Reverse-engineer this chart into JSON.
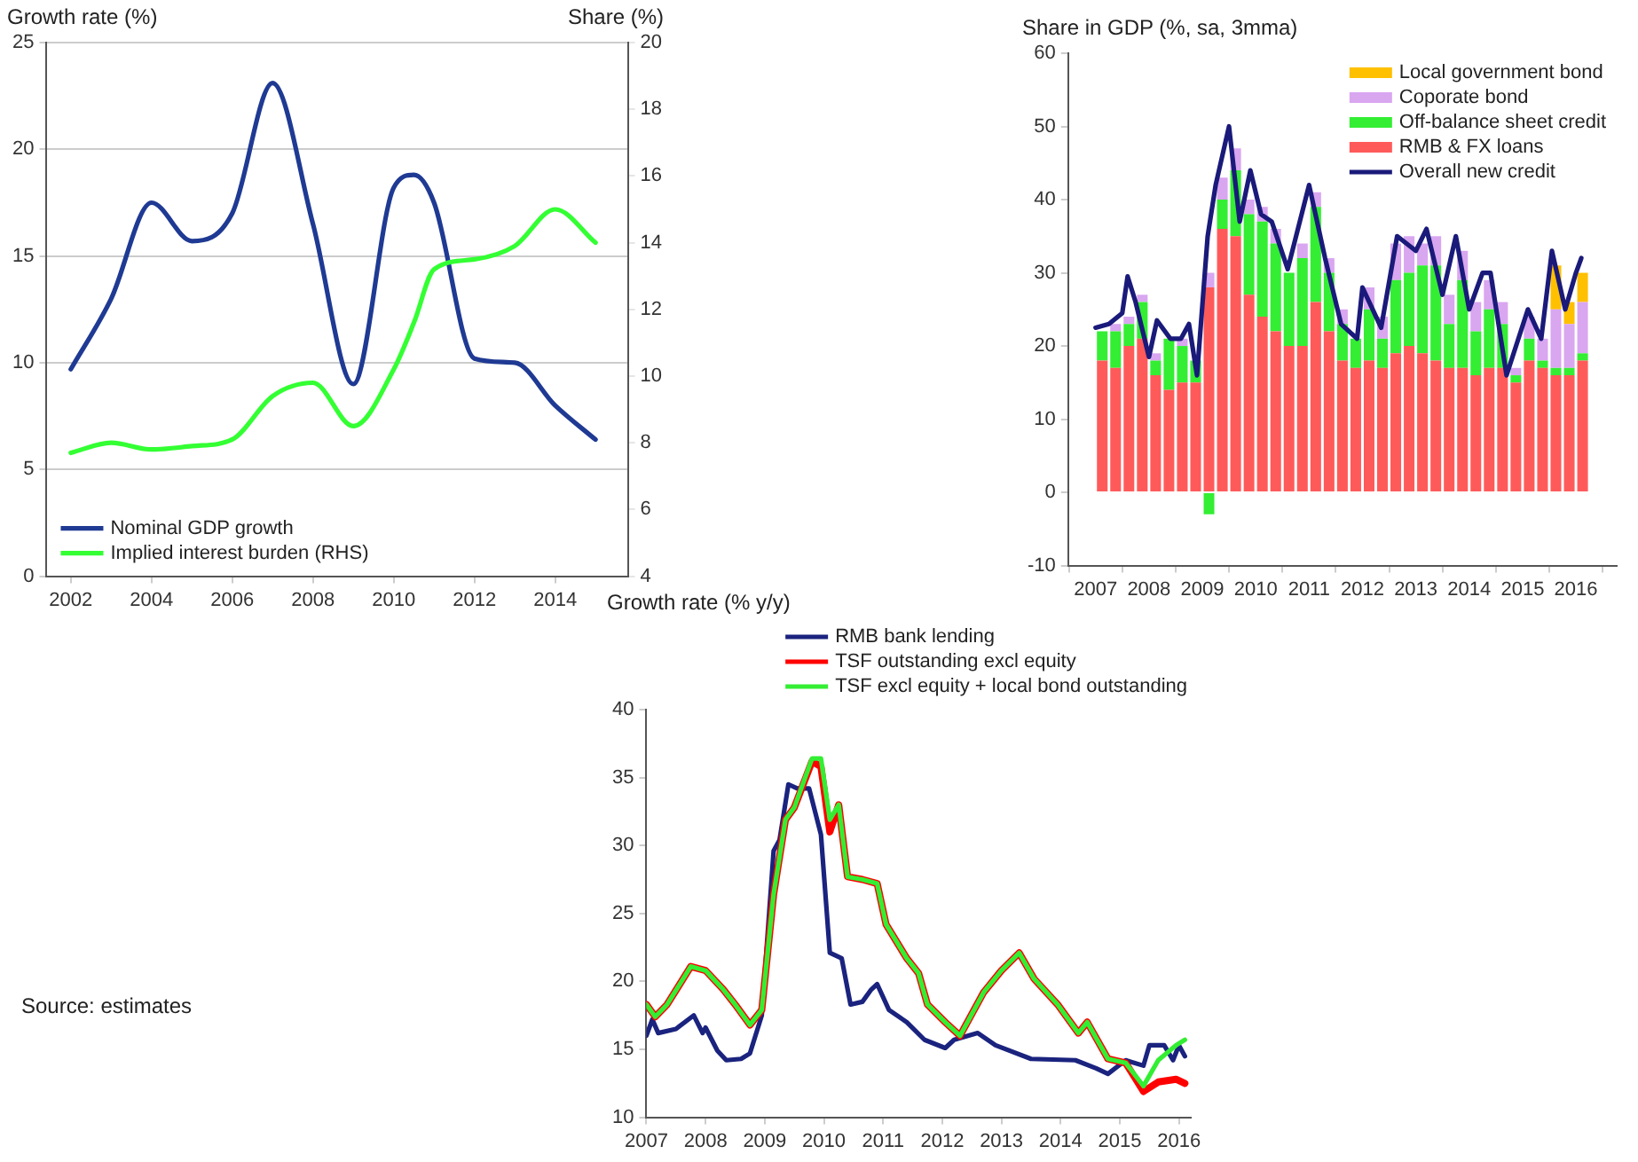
{
  "chart_data": [
    {
      "type": "line",
      "ylabel": "Growth rate (%)",
      "y2label": "Share (%)",
      "x": [
        2002,
        2003,
        2004,
        2005,
        2006,
        2007,
        2008,
        2009,
        2010,
        2010.5,
        2011,
        2012,
        2013,
        2014,
        2015
      ],
      "series": [
        {
          "name": "Nominal GDP growth",
          "color": "#1f3a93",
          "values": [
            9.7,
            13,
            17.5,
            15.7,
            17,
            23.1,
            16.5,
            9,
            18.2,
            18.8,
            17.5,
            10.2,
            10,
            8,
            6.4
          ]
        },
        {
          "name": "Implied interest burden (RHS)",
          "color": "#33ff33",
          "axis": "y2",
          "values": [
            7.7,
            8.0,
            7.8,
            7.9,
            8.1,
            9.4,
            9.8,
            8.5,
            10.2,
            11.6,
            13.2,
            13.5,
            13.9,
            15.0,
            14.0
          ]
        }
      ],
      "xlim": [
        2001.4,
        2015.8
      ],
      "xticks": [
        2002,
        2004,
        2006,
        2008,
        2010,
        2012,
        2014
      ],
      "ylim": [
        0,
        25
      ],
      "yticks": [
        0,
        5,
        10,
        15,
        20,
        25
      ],
      "y2lim": [
        4,
        20
      ],
      "y2ticks": [
        4,
        6,
        8,
        10,
        12,
        14,
        16,
        18,
        20
      ],
      "grid": "y",
      "legend": "bottom left",
      "annotations": [
        "Source: estimates"
      ]
    },
    {
      "type": "bar",
      "stacked": true,
      "ylabel": "Share in GDP (%, sa, 3mma)",
      "x": [
        2007.125,
        2007.375,
        2007.625,
        2007.875,
        2008.125,
        2008.375,
        2008.625,
        2008.875,
        2009.125,
        2009.375,
        2009.625,
        2009.875,
        2010.125,
        2010.375,
        2010.625,
        2010.875,
        2011.125,
        2011.375,
        2011.625,
        2011.875,
        2012.125,
        2012.375,
        2012.625,
        2012.875,
        2013.125,
        2013.375,
        2013.625,
        2013.875,
        2014.125,
        2014.375,
        2014.625,
        2014.875,
        2015.125,
        2015.375,
        2015.625,
        2015.875,
        2016.125
      ],
      "series": [
        {
          "name": "RMB & FX loans",
          "color": "#ff5a5a",
          "values": [
            18,
            17,
            20,
            21,
            16,
            14,
            15,
            15,
            28,
            36,
            35,
            27,
            24,
            22,
            20,
            20,
            26,
            22,
            18,
            17,
            18,
            17,
            19,
            20,
            19,
            18,
            17,
            17,
            16,
            17,
            17,
            15,
            18,
            17,
            16,
            16,
            18
          ]
        },
        {
          "name": "Off-balance sheet credit",
          "color": "#33ee33",
          "values": [
            4,
            5,
            3,
            5,
            2,
            7,
            5,
            3,
            -3,
            4,
            9,
            11,
            13,
            12,
            10,
            12,
            13,
            8,
            5,
            4,
            7,
            4,
            10,
            10,
            12,
            13,
            6,
            12,
            6,
            8,
            6,
            1,
            3,
            1,
            1,
            1,
            1
          ]
        },
        {
          "name": "Coporate bond",
          "color": "#d9a6f0",
          "values": [
            null,
            1,
            1,
            1,
            1,
            null,
            1,
            null,
            2,
            3,
            3,
            2,
            2,
            2,
            null,
            2,
            2,
            2,
            2,
            null,
            3,
            3,
            5,
            5,
            3,
            4,
            4,
            4,
            4,
            4,
            3,
            1,
            3,
            3,
            8,
            6,
            7
          ]
        },
        {
          "name": "Local government bond",
          "color": "#ffc000",
          "values": [
            0,
            0,
            0,
            0,
            0,
            0,
            0,
            0,
            0,
            0,
            0,
            0,
            0,
            0,
            0,
            0,
            0,
            0,
            0,
            0,
            0,
            0,
            0,
            0,
            0,
            0,
            0,
            0,
            0,
            0,
            0,
            0,
            0,
            0,
            6,
            3,
            4
          ]
        },
        {
          "name": "Overall new credit",
          "type": "line",
          "color": "#1a1a7a",
          "x": [
            2007,
            2007.25,
            2007.5,
            2007.6,
            2007.75,
            2008,
            2008.15,
            2008.4,
            2008.6,
            2008.75,
            2008.9,
            2009.1,
            2009.25,
            2009.5,
            2009.7,
            2009.9,
            2010.1,
            2010.3,
            2010.6,
            2011,
            2011.3,
            2011.6,
            2011.9,
            2012,
            2012.35,
            2012.65,
            2013,
            2013.2,
            2013.5,
            2013.75,
            2014,
            2014.25,
            2014.4,
            2014.7,
            2015.1,
            2015.35,
            2015.55,
            2015.8,
            2016,
            2016.1
          ],
          "values": [
            22.5,
            23,
            24.5,
            29.5,
            26,
            18.5,
            23.5,
            21,
            21,
            23,
            16,
            35,
            42,
            50,
            37,
            44,
            38,
            37,
            30.5,
            42,
            32,
            23,
            21,
            28,
            22.5,
            35,
            33,
            36,
            27,
            35,
            25,
            30,
            30,
            16,
            25,
            21,
            33,
            25,
            30,
            32
          ]
        }
      ],
      "xlim": [
        2007,
        2016.25
      ],
      "xticks": [
        2007,
        2008,
        2009,
        2010,
        2011,
        2012,
        2013,
        2014,
        2015,
        2016
      ],
      "ylim": [
        -10,
        60
      ],
      "yticks": [
        -10,
        0,
        10,
        20,
        30,
        40,
        50,
        60
      ],
      "legend": "top right"
    },
    {
      "type": "line",
      "ylabel": "Growth rate (% y/y)",
      "series": [
        {
          "name": "RMB bank lending",
          "color": "#1a237e",
          "x": [
            2007,
            2007.1,
            2007.2,
            2007.5,
            2007.8,
            2007.95,
            2008,
            2008.2,
            2008.35,
            2008.6,
            2008.75,
            2008.95,
            2009.15,
            2009.25,
            2009.4,
            2009.55,
            2009.75,
            2009.95,
            2010.1,
            2010.3,
            2010.45,
            2010.65,
            2010.8,
            2010.9,
            2011.1,
            2011.4,
            2011.7,
            2012.05,
            2012.2,
            2012.6,
            2012.9,
            2013.5,
            2014.25,
            2014.6,
            2014.8,
            2015.1,
            2015.4,
            2015.5,
            2015.75,
            2015.9,
            2016,
            2016.1
          ],
          "values": [
            16,
            17.2,
            16.2,
            16.5,
            17.5,
            16.2,
            16.6,
            14.9,
            14.2,
            14.3,
            14.7,
            17.5,
            29.6,
            30.4,
            34.5,
            34.2,
            34.2,
            30.8,
            22.1,
            21.7,
            18.3,
            18.5,
            19.4,
            19.8,
            17.9,
            17,
            15.7,
            15.1,
            15.7,
            16.2,
            15.3,
            14.3,
            14.2,
            13.6,
            13.2,
            14.2,
            13.8,
            15.3,
            15.3,
            14.2,
            15.3,
            14.5
          ]
        },
        {
          "name": "TSF outstanding excl equity",
          "color": "#ff0000",
          "x": [
            2007,
            2007.15,
            2007.35,
            2007.75,
            2008,
            2008.3,
            2008.5,
            2008.75,
            2008.95,
            2009.15,
            2009.35,
            2009.5,
            2009.8,
            2009.95,
            2010.1,
            2010.25,
            2010.4,
            2010.65,
            2010.9,
            2011.05,
            2011.4,
            2011.6,
            2011.75,
            2012.05,
            2012.3,
            2012.7,
            2013,
            2013.3,
            2013.55,
            2013.95,
            2014.3,
            2014.45,
            2014.8,
            2015.1,
            2015.4,
            2015.65,
            2015.95,
            2016.1
          ],
          "values": [
            18.3,
            17.4,
            18.3,
            21.1,
            20.8,
            19.4,
            18.3,
            16.8,
            17.9,
            26.4,
            31.9,
            32.8,
            36.2,
            35.8,
            31,
            33,
            27.7,
            27.5,
            27.2,
            24.2,
            21.7,
            20.6,
            18.3,
            17,
            16,
            19.2,
            20.8,
            22.1,
            20.2,
            18.3,
            16.2,
            17,
            14.3,
            14,
            11.9,
            12.6,
            12.8,
            12.5
          ]
        },
        {
          "name": "TSF excl equity + local bond outstanding",
          "color": "#33ee33",
          "x": [
            2007,
            2007.15,
            2007.35,
            2007.75,
            2008,
            2008.3,
            2008.5,
            2008.75,
            2008.95,
            2009.15,
            2009.35,
            2009.5,
            2009.8,
            2009.95,
            2010.1,
            2010.25,
            2010.4,
            2010.65,
            2010.9,
            2011.05,
            2011.4,
            2011.6,
            2011.75,
            2012.05,
            2012.3,
            2012.7,
            2013,
            2013.3,
            2013.55,
            2013.95,
            2014.3,
            2014.45,
            2014.8,
            2015.1,
            2015.4,
            2015.65,
            2015.95,
            2016.1
          ],
          "values": [
            18.3,
            17.4,
            18.3,
            21.1,
            20.8,
            19.4,
            18.3,
            16.8,
            17.9,
            26.4,
            31.9,
            32.8,
            36.4,
            36.4,
            31.9,
            33,
            27.7,
            27.5,
            27.2,
            24.2,
            21.7,
            20.6,
            18.3,
            17,
            16,
            19.2,
            20.8,
            22.1,
            20.2,
            18.3,
            16.2,
            17,
            14.3,
            14,
            12.3,
            14.2,
            15.3,
            15.7
          ]
        }
      ],
      "xlim": [
        2007,
        2016.2
      ],
      "xticks": [
        2007,
        2008,
        2009,
        2010,
        2011,
        2012,
        2013,
        2014,
        2015,
        2016
      ],
      "ylim": [
        10,
        40
      ],
      "yticks": [
        10,
        15,
        20,
        25,
        30,
        35,
        40
      ],
      "legend": "top"
    }
  ]
}
